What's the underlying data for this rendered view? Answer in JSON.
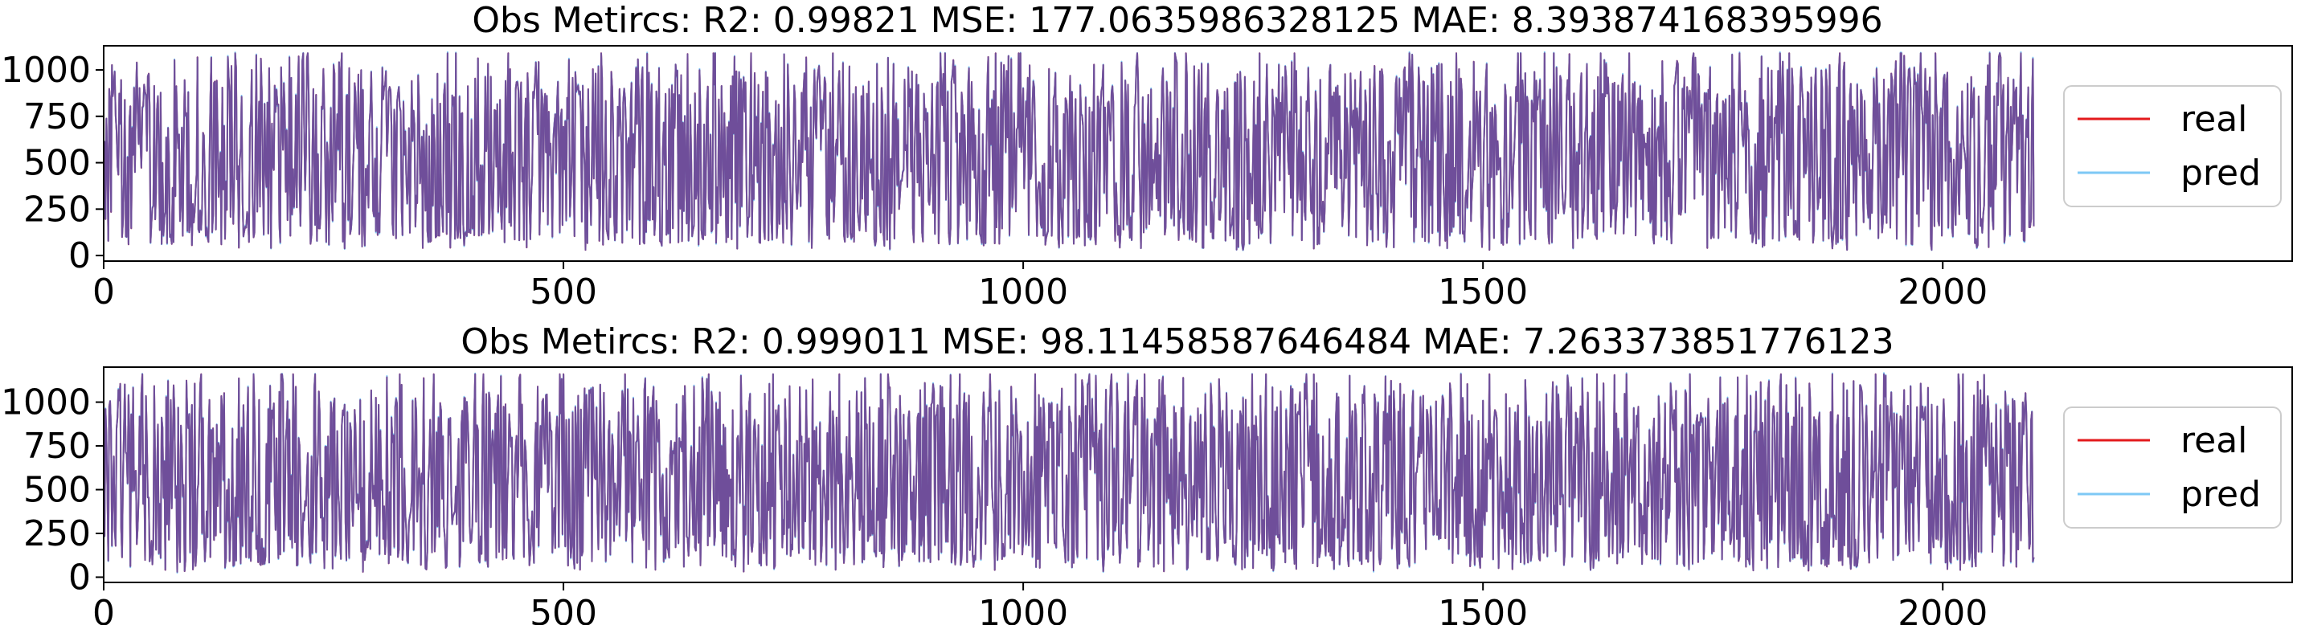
{
  "chart_data": [
    {
      "type": "line",
      "title": "Obs Metircs:     R2: 0.99821    MSE: 177.0635986328125    MAE: 8.393874168395996",
      "xlabel": "",
      "ylabel": "",
      "xlim": [
        0,
        2380
      ],
      "ylim": [
        -30,
        1130
      ],
      "xticks": [
        0,
        500,
        1000,
        1500,
        2000
      ],
      "yticks": [
        0,
        250,
        500,
        750,
        1000
      ],
      "xtick_labels": [
        "0",
        "500",
        "1000",
        "1500",
        "2000"
      ],
      "ytick_labels": [
        "0",
        "250",
        "500",
        "750",
        "1000"
      ],
      "legend_position": "center-right",
      "n_points": 2100,
      "value_range": [
        30,
        1090
      ],
      "series": [
        {
          "name": "real",
          "color": "#e31a1c"
        },
        {
          "name": "pred",
          "color": "#7ec8f5"
        }
      ]
    },
    {
      "type": "line",
      "title": "Obs Metircs:     R2: 0.999011    MSE: 98.11458587646484    MAE: 7.263373851776123",
      "xlabel": "",
      "ylabel": "",
      "xlim": [
        0,
        2380
      ],
      "ylim": [
        -30,
        1200
      ],
      "xticks": [
        0,
        500,
        1000,
        1500,
        2000
      ],
      "yticks": [
        0,
        250,
        500,
        750,
        1000
      ],
      "xtick_labels": [
        "0",
        "500",
        "1000",
        "1500",
        "2000"
      ],
      "ytick_labels": [
        "0",
        "250",
        "500",
        "750",
        "1000"
      ],
      "legend_position": "center-right",
      "n_points": 2100,
      "value_range": [
        30,
        1160
      ],
      "series": [
        {
          "name": "real",
          "color": "#e31a1c"
        },
        {
          "name": "pred",
          "color": "#7ec8f5"
        }
      ]
    }
  ],
  "overlap_color": "#6f4e9a"
}
